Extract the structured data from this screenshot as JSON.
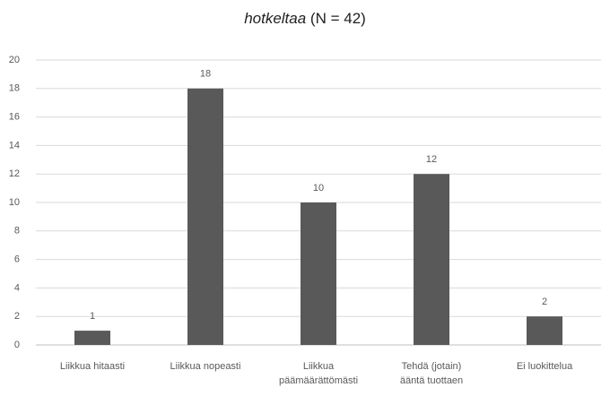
{
  "chart_data": {
    "type": "bar",
    "title": [
      "hotkeltaa",
      "(N = 42)"
    ],
    "categories": [
      [
        "Liikkua hitaasti"
      ],
      [
        "Liikkua nopeasti"
      ],
      [
        "Liikkua",
        "päämäärättömästi"
      ],
      [
        "Tehdä (jotain)",
        "ääntä tuottaen"
      ],
      [
        "Ei luokittelua"
      ]
    ],
    "values": [
      1,
      18,
      10,
      12,
      2
    ],
    "color": "#595959",
    "ylim": [
      0,
      20
    ],
    "yticks": [
      0,
      2,
      4,
      6,
      8,
      10,
      12,
      14,
      16,
      18,
      20
    ],
    "grid": true
  }
}
